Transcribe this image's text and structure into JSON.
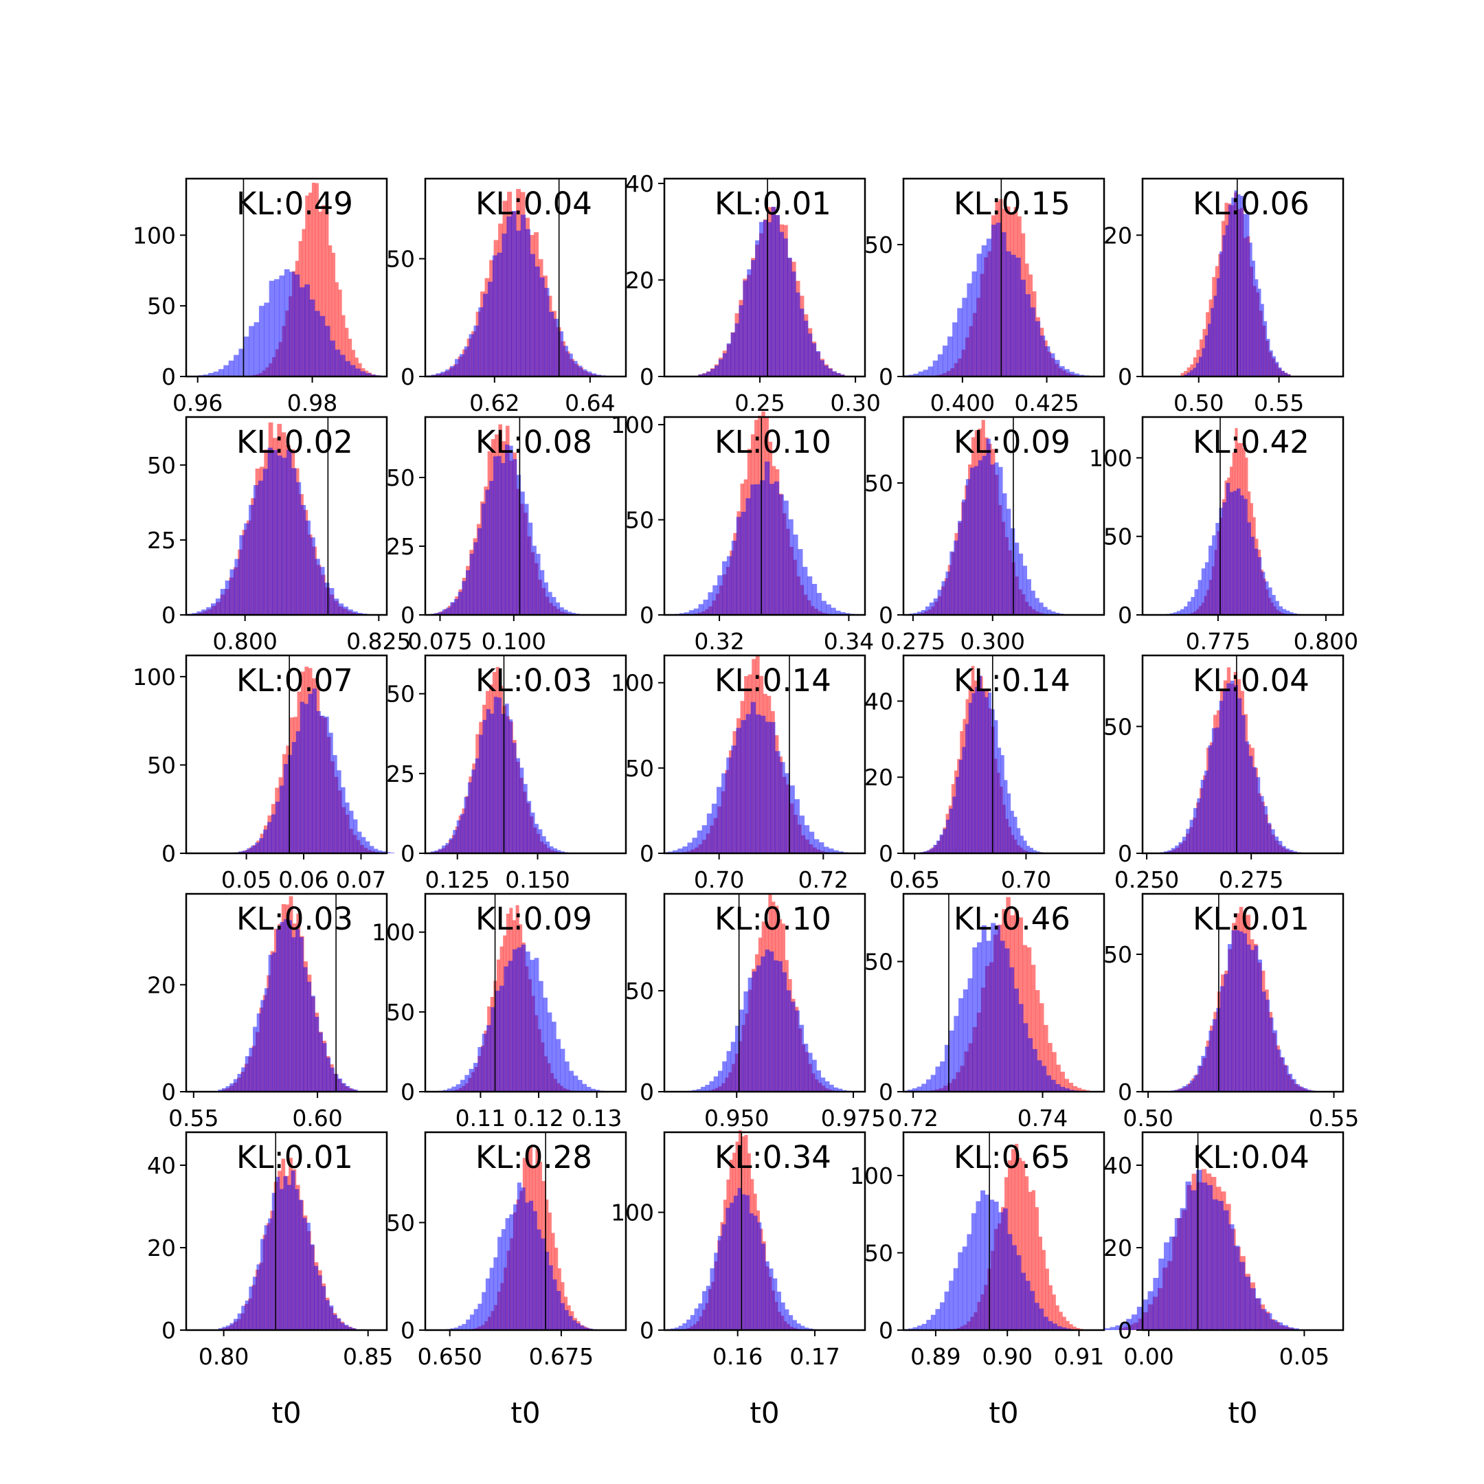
{
  "figure": {
    "background": "#ffffff",
    "series_colors": {
      "red": "#ff0000",
      "blue": "#0000ff",
      "overlap": "#8040c0"
    },
    "bar_opacity": 0.5
  },
  "chart_data": [
    {
      "type": "bar",
      "kl_label": "KL:0.49",
      "xlim": [
        0.958,
        0.993
      ],
      "ylim": [
        0,
        140
      ],
      "xticks": [
        0.96,
        0.98
      ],
      "xtick_labels": [
        "0.96",
        "0.98"
      ],
      "yticks": [
        0,
        50,
        100
      ],
      "ytick_labels": [
        "0",
        "50",
        "100"
      ],
      "truth": 0.968,
      "xlabel": "",
      "red": {
        "mean": 0.9805,
        "sd": 0.0034,
        "peak": 130
      },
      "blue": {
        "mean": 0.976,
        "sd": 0.0052,
        "peak": 75
      }
    },
    {
      "type": "bar",
      "kl_label": "KL:0.04",
      "xlim": [
        0.6055,
        0.6475
      ],
      "ylim": [
        0,
        84
      ],
      "xticks": [
        0.62,
        0.64
      ],
      "xtick_labels": [
        "0.62",
        "0.64"
      ],
      "yticks": [
        0,
        50
      ],
      "ytick_labels": [
        "0",
        "50"
      ],
      "truth": 0.6335,
      "xlabel": "",
      "red": {
        "mean": 0.6245,
        "sd": 0.0055,
        "peak": 76
      },
      "blue": {
        "mean": 0.6245,
        "sd": 0.0058,
        "peak": 66
      }
    },
    {
      "type": "bar",
      "kl_label": "KL:0.01",
      "xlim": [
        0.2,
        0.305
      ],
      "ylim": [
        0,
        41
      ],
      "xticks": [
        0.25,
        0.3
      ],
      "xtick_labels": [
        "0.25",
        "0.30"
      ],
      "yticks": [
        0,
        20,
        40
      ],
      "ytick_labels": [
        "0",
        "20",
        "40"
      ],
      "truth": 0.254,
      "xlabel": "",
      "red": {
        "mean": 0.256,
        "sd": 0.0125,
        "peak": 35
      },
      "blue": {
        "mean": 0.256,
        "sd": 0.0125,
        "peak": 34
      }
    },
    {
      "type": "bar",
      "kl_label": "KL:0.15",
      "xlim": [
        0.3825,
        0.442
      ],
      "ylim": [
        0,
        75
      ],
      "xticks": [
        0.4,
        0.425
      ],
      "xtick_labels": [
        "0.400",
        "0.425"
      ],
      "yticks": [
        0,
        50
      ],
      "ytick_labels": [
        "0",
        "50"
      ],
      "truth": 0.4115,
      "xlabel": "",
      "red": {
        "mean": 0.413,
        "sd": 0.0065,
        "peak": 68
      },
      "blue": {
        "mean": 0.41,
        "sd": 0.0085,
        "peak": 56
      }
    },
    {
      "type": "bar",
      "kl_label": "KL:0.06",
      "xlim": [
        0.465,
        0.59
      ],
      "ylim": [
        0,
        28
      ],
      "xticks": [
        0.5,
        0.55
      ],
      "xtick_labels": [
        "0.50",
        "0.55"
      ],
      "yticks": [
        0,
        20
      ],
      "ytick_labels": [
        "0",
        "20"
      ],
      "truth": 0.524,
      "xlabel": "",
      "red": {
        "mean": 0.522,
        "sd": 0.0115,
        "peak": 25
      },
      "blue": {
        "mean": 0.524,
        "sd": 0.0108,
        "peak": 27
      }
    },
    {
      "type": "bar",
      "kl_label": "KL:0.02",
      "xlim": [
        0.789,
        0.8265
      ],
      "ylim": [
        0,
        66
      ],
      "xticks": [
        0.8,
        0.825
      ],
      "xtick_labels": [
        "0.800",
        "0.825"
      ],
      "yticks": [
        0,
        25,
        50
      ],
      "ytick_labels": [
        "0",
        "25",
        "50"
      ],
      "truth": 0.8155,
      "xlabel": "",
      "red": {
        "mean": 0.806,
        "sd": 0.0048,
        "peak": 62
      },
      "blue": {
        "mean": 0.806,
        "sd": 0.0052,
        "peak": 56
      }
    },
    {
      "type": "bar",
      "kl_label": "KL:0.08",
      "xlim": [
        0.07,
        0.138
      ],
      "ylim": [
        0,
        72
      ],
      "xticks": [
        0.075,
        0.1
      ],
      "xtick_labels": [
        "0.075",
        "0.100"
      ],
      "yticks": [
        0,
        25,
        50
      ],
      "ytick_labels": [
        "0",
        "25",
        "50"
      ],
      "truth": 0.102,
      "xlabel": "",
      "red": {
        "mean": 0.096,
        "sd": 0.0072,
        "peak": 66
      },
      "blue": {
        "mean": 0.097,
        "sd": 0.0078,
        "peak": 60
      }
    },
    {
      "type": "bar",
      "kl_label": "KL:0.10",
      "xlim": [
        0.3115,
        0.3425
      ],
      "ylim": [
        0,
        104
      ],
      "xticks": [
        0.32,
        0.34
      ],
      "xtick_labels": [
        "0.32",
        "0.34"
      ],
      "yticks": [
        0,
        50,
        100
      ],
      "ytick_labels": [
        "0",
        "50",
        "100"
      ],
      "truth": 0.3265,
      "xlabel": "",
      "red": {
        "mean": 0.3265,
        "sd": 0.0032,
        "peak": 100
      },
      "blue": {
        "mean": 0.327,
        "sd": 0.0043,
        "peak": 75
      }
    },
    {
      "type": "bar",
      "kl_label": "KL:0.09",
      "xlim": [
        0.272,
        0.335
      ],
      "ylim": [
        0,
        75
      ],
      "xticks": [
        0.275,
        0.3
      ],
      "xtick_labels": [
        "0.275",
        "0.300"
      ],
      "yticks": [
        0,
        50
      ],
      "ytick_labels": [
        "0",
        "50"
      ],
      "truth": 0.3065,
      "xlabel": "",
      "red": {
        "mean": 0.2965,
        "sd": 0.0062,
        "peak": 70
      },
      "blue": {
        "mean": 0.298,
        "sd": 0.0075,
        "peak": 64
      }
    },
    {
      "type": "bar",
      "kl_label": "KL:0.42",
      "xlim": [
        0.7575,
        0.804
      ],
      "ylim": [
        0,
        126
      ],
      "xticks": [
        0.775,
        0.8
      ],
      "xtick_labels": [
        "0.775",
        "0.800"
      ],
      "yticks": [
        0,
        50,
        100
      ],
      "ytick_labels": [
        "0",
        "50",
        "100"
      ],
      "truth": 0.7755,
      "xlabel": "",
      "red": {
        "mean": 0.7795,
        "sd": 0.0035,
        "peak": 112
      },
      "blue": {
        "mean": 0.7785,
        "sd": 0.0048,
        "peak": 82
      }
    },
    {
      "type": "bar",
      "kl_label": "KL:0.07",
      "xlim": [
        0.0395,
        0.0745
      ],
      "ylim": [
        0,
        112
      ],
      "xticks": [
        0.05,
        0.06,
        0.07
      ],
      "xtick_labels": [
        "0.05",
        "0.06",
        "0.07"
      ],
      "yticks": [
        0,
        50,
        100
      ],
      "ytick_labels": [
        "0",
        "50",
        "100"
      ],
      "truth": 0.0575,
      "xlabel": "",
      "red": {
        "mean": 0.0608,
        "sd": 0.0038,
        "peak": 100
      },
      "blue": {
        "mean": 0.0615,
        "sd": 0.0042,
        "peak": 88
      }
    },
    {
      "type": "bar",
      "kl_label": "KL:0.03",
      "xlim": [
        0.115,
        0.1775
      ],
      "ylim": [
        0,
        62
      ],
      "xticks": [
        0.125,
        0.15
      ],
      "xtick_labels": [
        "0.125",
        "0.150"
      ],
      "yticks": [
        0,
        25,
        50
      ],
      "ytick_labels": [
        "0",
        "25",
        "50"
      ],
      "truth": 0.1395,
      "xlabel": "",
      "red": {
        "mean": 0.137,
        "sd": 0.0062,
        "peak": 55
      },
      "blue": {
        "mean": 0.1375,
        "sd": 0.0068,
        "peak": 48
      }
    },
    {
      "type": "bar",
      "kl_label": "KL:0.14",
      "xlim": [
        0.6895,
        0.728
      ],
      "ylim": [
        0,
        116
      ],
      "xticks": [
        0.7,
        0.72
      ],
      "xtick_labels": [
        "0.70",
        "0.72"
      ],
      "yticks": [
        0,
        50,
        100
      ],
      "ytick_labels": [
        "0",
        "50",
        "100"
      ],
      "truth": 0.7135,
      "xlabel": "",
      "red": {
        "mean": 0.707,
        "sd": 0.0043,
        "peak": 108
      },
      "blue": {
        "mean": 0.707,
        "sd": 0.0055,
        "peak": 86
      }
    },
    {
      "type": "bar",
      "kl_label": "KL:0.14",
      "xlim": [
        0.645,
        0.735
      ],
      "ylim": [
        0,
        52
      ],
      "xticks": [
        0.65,
        0.7
      ],
      "xtick_labels": [
        "0.65",
        "0.70"
      ],
      "yticks": [
        0,
        20,
        40
      ],
      "ytick_labels": [
        "0",
        "20",
        "40"
      ],
      "truth": 0.685,
      "xlabel": "",
      "red": {
        "mean": 0.678,
        "sd": 0.0075,
        "peak": 48
      },
      "blue": {
        "mean": 0.68,
        "sd": 0.0085,
        "peak": 44
      }
    },
    {
      "type": "bar",
      "kl_label": "KL:0.04",
      "xlim": [
        0.249,
        0.297
      ],
      "ylim": [
        0,
        78
      ],
      "xticks": [
        0.25,
        0.275
      ],
      "xtick_labels": [
        "0.250",
        "0.275"
      ],
      "yticks": [
        0,
        50
      ],
      "ytick_labels": [
        "0",
        "50"
      ],
      "truth": 0.2715,
      "xlabel": "",
      "red": {
        "mean": 0.27,
        "sd": 0.0048,
        "peak": 72
      },
      "blue": {
        "mean": 0.27,
        "sd": 0.0052,
        "peak": 64
      }
    },
    {
      "type": "bar",
      "kl_label": "KL:0.03",
      "xlim": [
        0.547,
        0.628
      ],
      "ylim": [
        0,
        37
      ],
      "xticks": [
        0.55,
        0.6
      ],
      "xtick_labels": [
        "0.55",
        "0.60"
      ],
      "yticks": [
        0,
        20
      ],
      "ytick_labels": [
        "0",
        "20"
      ],
      "truth": 0.6075,
      "xlabel": "",
      "red": {
        "mean": 0.5885,
        "sd": 0.0088,
        "peak": 34
      },
      "blue": {
        "mean": 0.588,
        "sd": 0.0092,
        "peak": 32
      }
    },
    {
      "type": "bar",
      "kl_label": "KL:0.09",
      "xlim": [
        0.1005,
        0.135
      ],
      "ylim": [
        0,
        124
      ],
      "xticks": [
        0.11,
        0.12,
        0.13
      ],
      "xtick_labels": [
        "0.11",
        "0.12",
        "0.13"
      ],
      "yticks": [
        0,
        50,
        100
      ],
      "ytick_labels": [
        "0",
        "50",
        "100"
      ],
      "truth": 0.1125,
      "xlabel": "",
      "red": {
        "mean": 0.1155,
        "sd": 0.0032,
        "peak": 112
      },
      "blue": {
        "mean": 0.117,
        "sd": 0.0044,
        "peak": 96
      }
    },
    {
      "type": "bar",
      "kl_label": "KL:0.10",
      "xlim": [
        0.9345,
        0.9775
      ],
      "ylim": [
        0,
        98
      ],
      "xticks": [
        0.95,
        0.975
      ],
      "xtick_labels": [
        "0.950",
        "0.975"
      ],
      "yticks": [
        0,
        50
      ],
      "ytick_labels": [
        "0",
        "50"
      ],
      "truth": 0.9505,
      "xlabel": "",
      "red": {
        "mean": 0.9575,
        "sd": 0.0042,
        "peak": 92
      },
      "blue": {
        "mean": 0.957,
        "sd": 0.0054,
        "peak": 72
      }
    },
    {
      "type": "bar",
      "kl_label": "KL:0.46",
      "xlim": [
        0.7185,
        0.7495
      ],
      "ylim": [
        0,
        76
      ],
      "xticks": [
        0.72,
        0.74
      ],
      "xtick_labels": [
        "0.72",
        "0.74"
      ],
      "yticks": [
        0,
        50
      ],
      "ytick_labels": [
        "0",
        "50"
      ],
      "truth": 0.7255,
      "xlabel": "",
      "red": {
        "mean": 0.735,
        "sd": 0.0038,
        "peak": 72
      },
      "blue": {
        "mean": 0.732,
        "sd": 0.0042,
        "peak": 62
      }
    },
    {
      "type": "bar",
      "kl_label": "KL:0.01",
      "xlim": [
        0.4985,
        0.5525
      ],
      "ylim": [
        0,
        72
      ],
      "xticks": [
        0.5,
        0.55
      ],
      "xtick_labels": [
        "0.50",
        "0.55"
      ],
      "yticks": [
        0,
        50
      ],
      "ytick_labels": [
        "0",
        "50"
      ],
      "truth": 0.519,
      "xlabel": "",
      "red": {
        "mean": 0.5255,
        "sd": 0.0058,
        "peak": 64
      },
      "blue": {
        "mean": 0.5255,
        "sd": 0.006,
        "peak": 60
      }
    },
    {
      "type": "bar",
      "kl_label": "KL:0.01",
      "xlim": [
        0.787,
        0.8565
      ],
      "ylim": [
        0,
        48
      ],
      "xticks": [
        0.8,
        0.85
      ],
      "xtick_labels": [
        "0.80",
        "0.85"
      ],
      "yticks": [
        0,
        20,
        40
      ],
      "ytick_labels": [
        "0",
        "20",
        "40"
      ],
      "truth": 0.818,
      "xlabel": "t0",
      "red": {
        "mean": 0.8225,
        "sd": 0.0075,
        "peak": 40
      },
      "blue": {
        "mean": 0.822,
        "sd": 0.0078,
        "peak": 38
      }
    },
    {
      "type": "bar",
      "kl_label": "KL:0.28",
      "xlim": [
        0.6445,
        0.6895
      ],
      "ylim": [
        0,
        92
      ],
      "xticks": [
        0.65,
        0.675
      ],
      "xtick_labels": [
        "0.650",
        "0.675"
      ],
      "yticks": [
        0,
        50
      ],
      "ytick_labels": [
        "0",
        "50"
      ],
      "truth": 0.6715,
      "xlabel": "t0",
      "red": {
        "mean": 0.6685,
        "sd": 0.0042,
        "peak": 82
      },
      "blue": {
        "mean": 0.666,
        "sd": 0.0052,
        "peak": 64
      }
    },
    {
      "type": "bar",
      "kl_label": "KL:0.34",
      "xlim": [
        0.1505,
        0.1765
      ],
      "ylim": [
        0,
        168
      ],
      "xticks": [
        0.16,
        0.17
      ],
      "xtick_labels": [
        "0.16",
        "0.17"
      ],
      "yticks": [
        0,
        100
      ],
      "ytick_labels": [
        "0",
        "100"
      ],
      "truth": 0.1605,
      "xlabel": "t0",
      "red": {
        "mean": 0.1605,
        "sd": 0.0023,
        "peak": 160
      },
      "blue": {
        "mean": 0.1605,
        "sd": 0.003,
        "peak": 116
      }
    },
    {
      "type": "bar",
      "kl_label": "KL:0.65",
      "xlim": [
        0.8855,
        0.9135
      ],
      "ylim": [
        0,
        128
      ],
      "xticks": [
        0.89,
        0.9,
        0.91
      ],
      "xtick_labels": [
        "0.89",
        "0.90",
        "0.91"
      ],
      "yticks": [
        0,
        50,
        100
      ],
      "ytick_labels": [
        "0",
        "50",
        "100"
      ],
      "truth": 0.8975,
      "xlabel": "t0",
      "red": {
        "mean": 0.9015,
        "sd": 0.0028,
        "peak": 115
      },
      "blue": {
        "mean": 0.8975,
        "sd": 0.0037,
        "peak": 88
      }
    },
    {
      "type": "bar",
      "kl_label": "KL:0.04",
      "xlim": [
        -0.002,
        0.0625
      ],
      "ylim": [
        0,
        48
      ],
      "xticks": [
        0,
        0.05
      ],
      "xtick_labels": [
        "0.00",
        "0.05"
      ],
      "yticks": [
        0,
        20,
        40
      ],
      "ytick_labels": [
        "0",
        "20",
        "40"
      ],
      "truth": 0.0158,
      "xlabel": "t0",
      "red": {
        "mean": 0.0185,
        "sd": 0.0092,
        "peak": 40
      },
      "blue": {
        "mean": 0.017,
        "sd": 0.0102,
        "peak": 37
      }
    }
  ]
}
